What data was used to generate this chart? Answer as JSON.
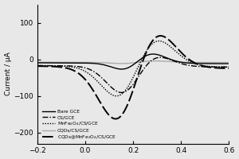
{
  "title": "",
  "xlabel": "",
  "ylabel": "Current / μA",
  "xlim": [
    -0.2,
    0.6
  ],
  "ylim": [
    -230,
    150
  ],
  "yticks": [
    -200,
    -100,
    0,
    100
  ],
  "xticks": [
    -0.2,
    0.0,
    0.2,
    0.4,
    0.6
  ],
  "legend_entries": [
    "Bare GCE",
    "CS/GCE",
    "MnFe$_2$O$_4$/CS/GCE",
    "CQDs/CS/GCE",
    "CQDs@MnFe$_2$O$_4$/CS/GCE"
  ],
  "bg_color": "#e8e8e8"
}
